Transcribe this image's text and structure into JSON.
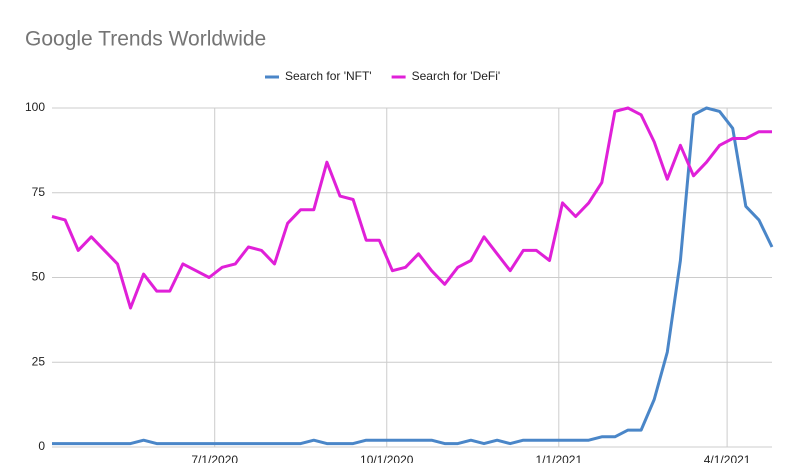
{
  "chart_data": {
    "type": "line",
    "title": "Google Trends Worldwide",
    "x": [
      "4/5/2020",
      "4/12/2020",
      "4/19/2020",
      "4/26/2020",
      "5/3/2020",
      "5/10/2020",
      "5/17/2020",
      "5/24/2020",
      "5/31/2020",
      "6/7/2020",
      "6/14/2020",
      "6/21/2020",
      "6/28/2020",
      "7/5/2020",
      "7/12/2020",
      "7/19/2020",
      "7/26/2020",
      "8/2/2020",
      "8/9/2020",
      "8/16/2020",
      "8/23/2020",
      "8/30/2020",
      "9/6/2020",
      "9/13/2020",
      "9/20/2020",
      "9/27/2020",
      "10/4/2020",
      "10/11/2020",
      "10/18/2020",
      "10/25/2020",
      "11/1/2020",
      "11/8/2020",
      "11/15/2020",
      "11/22/2020",
      "11/29/2020",
      "12/6/2020",
      "12/13/2020",
      "12/20/2020",
      "12/27/2020",
      "1/3/2021",
      "1/10/2021",
      "1/17/2021",
      "1/24/2021",
      "1/31/2021",
      "2/7/2021",
      "2/14/2021",
      "2/21/2021",
      "2/28/2021",
      "3/7/2021",
      "3/14/2021",
      "3/21/2021",
      "3/28/2021",
      "4/4/2021",
      "4/11/2021",
      "4/18/2021",
      "4/25/2021"
    ],
    "series": [
      {
        "name": "Search for 'NFT'",
        "color": "#4a86c8",
        "values": [
          1,
          1,
          1,
          1,
          1,
          1,
          1,
          2,
          1,
          1,
          1,
          1,
          1,
          1,
          1,
          1,
          1,
          1,
          1,
          1,
          2,
          1,
          1,
          1,
          2,
          2,
          2,
          2,
          2,
          2,
          1,
          1,
          2,
          1,
          2,
          1,
          2,
          2,
          2,
          2,
          2,
          2,
          3,
          3,
          5,
          5,
          14,
          28,
          55,
          98,
          100,
          99,
          94,
          71,
          67,
          59
        ]
      },
      {
        "name": "Search for 'DeFi'",
        "color": "#e020d8",
        "values": [
          68,
          67,
          58,
          62,
          58,
          54,
          41,
          51,
          46,
          46,
          54,
          52,
          50,
          53,
          54,
          59,
          58,
          54,
          66,
          70,
          70,
          84,
          74,
          73,
          61,
          61,
          52,
          53,
          57,
          52,
          48,
          53,
          55,
          62,
          57,
          52,
          58,
          58,
          55,
          72,
          68,
          72,
          78,
          99,
          100,
          98,
          90,
          79,
          89,
          80,
          84,
          89,
          91,
          91,
          93,
          93
        ]
      }
    ],
    "xlim": [
      "4/5/2020",
      "4/25/2021"
    ],
    "xticks": [
      "7/1/2020",
      "10/1/2020",
      "1/1/2021",
      "4/1/2021"
    ],
    "ylim": [
      0,
      100
    ],
    "yticks": [
      0,
      25,
      50,
      75,
      100
    ],
    "grid": true,
    "legend": "top"
  }
}
